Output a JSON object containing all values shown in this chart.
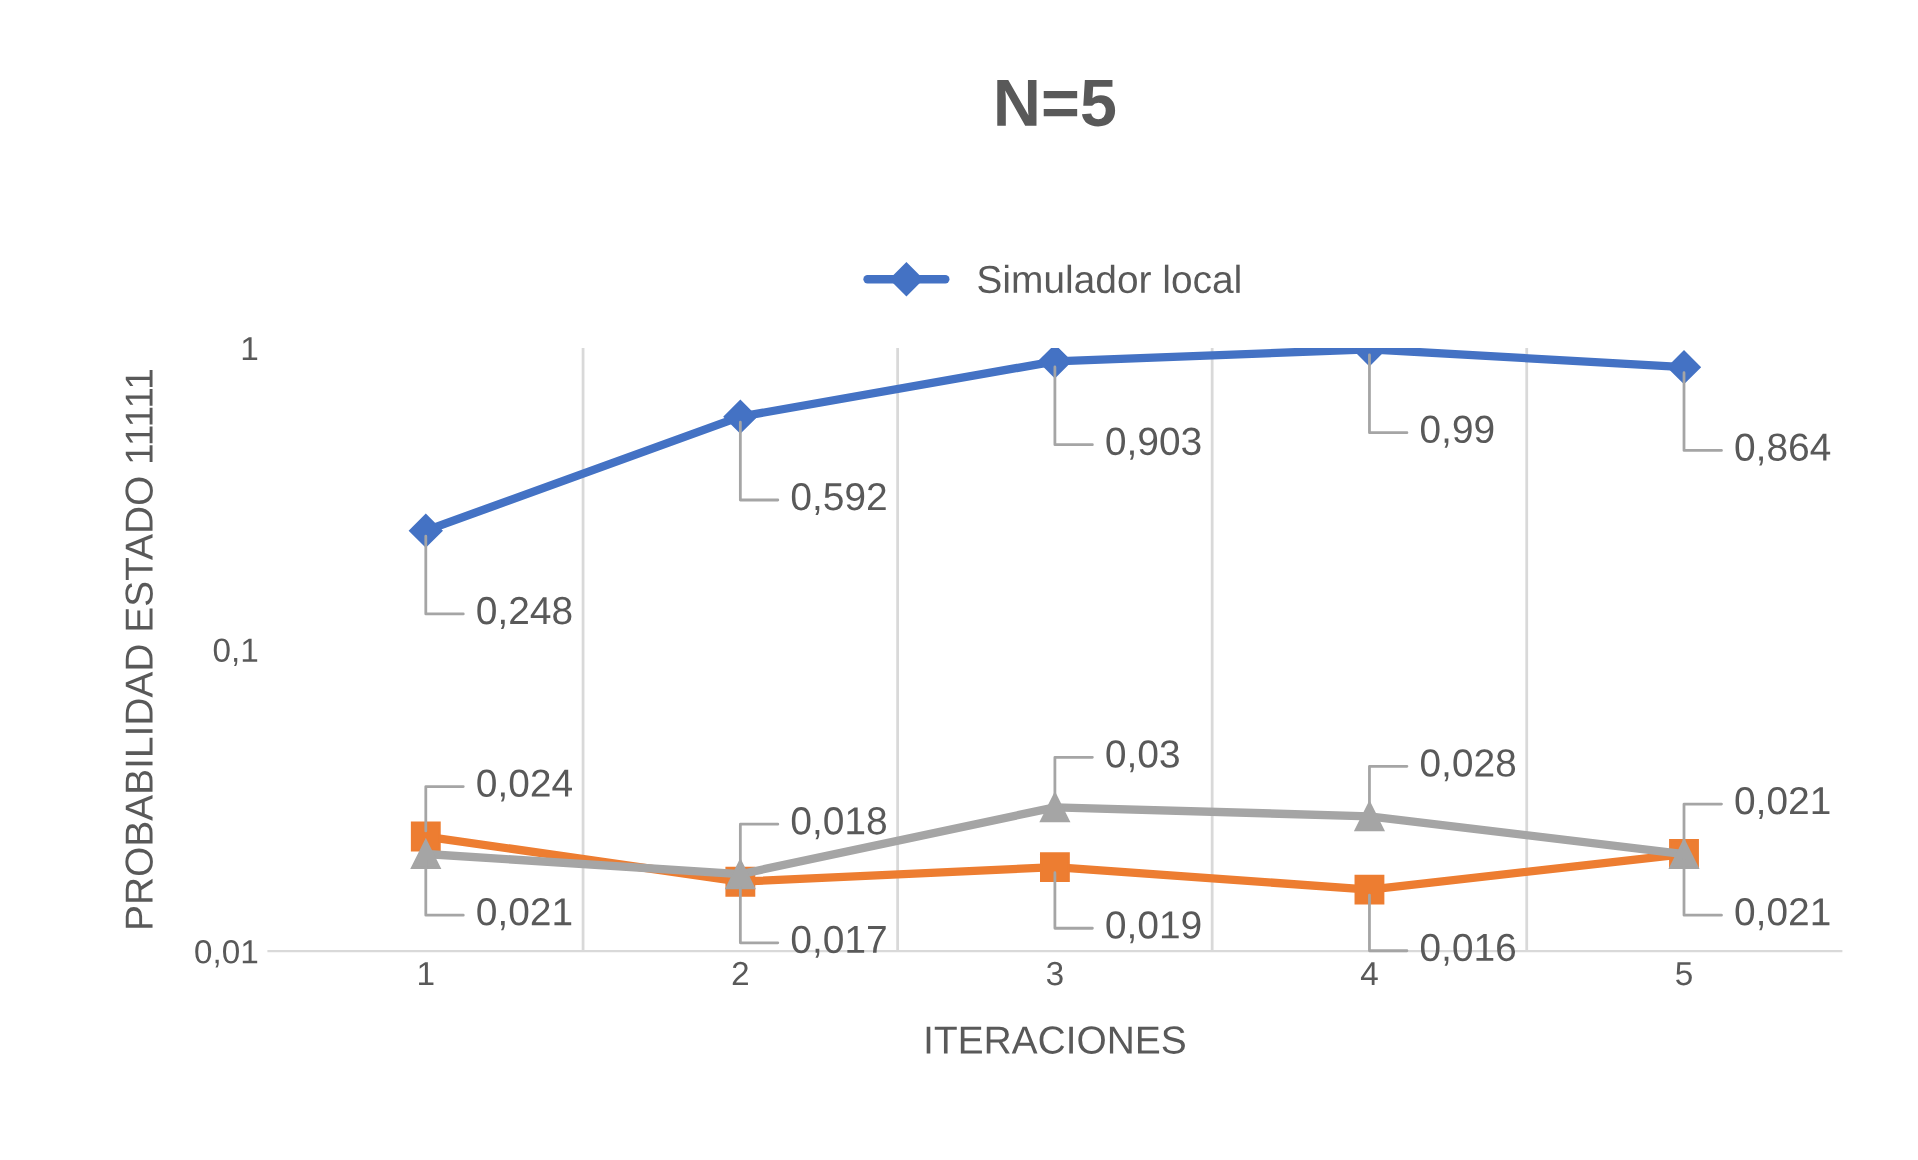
{
  "chart_data": {
    "type": "line",
    "title": "N=5",
    "xlabel": "ITERACIONES",
    "ylabel": "PROBABILIDAD ESTADO 11111",
    "categories": [
      "1",
      "2",
      "3",
      "4",
      "5"
    ],
    "series": [
      {
        "name": "Simulador local",
        "color": "#4472c4",
        "marker": "diamond",
        "values": [
          0.248,
          0.592,
          0.903,
          0.99,
          0.864
        ],
        "value_labels": [
          "0,248",
          "0,592",
          "0,903",
          "0,99",
          "0,864"
        ]
      },
      {
        "color": "#ed7d31",
        "marker": "square",
        "values": [
          0.024,
          0.017,
          0.019,
          0.016,
          0.021
        ],
        "value_labels": [
          "0,024",
          "0,017",
          "0,019",
          "0,016",
          "0,021"
        ]
      },
      {
        "color": "#a5a5a5",
        "marker": "triangle",
        "values": [
          0.021,
          0.018,
          0.03,
          0.028,
          0.021
        ],
        "value_labels": [
          "0,021",
          "0,018",
          "0,03",
          "0,028",
          "0,021"
        ]
      }
    ],
    "log": true,
    "ylim": [
      0.01,
      1
    ],
    "yticks": [
      {
        "value": 0.01,
        "label": "0,01"
      },
      {
        "value": 0.1,
        "label": "0,1"
      },
      1
    ],
    "grid": "x",
    "legend": "top"
  }
}
